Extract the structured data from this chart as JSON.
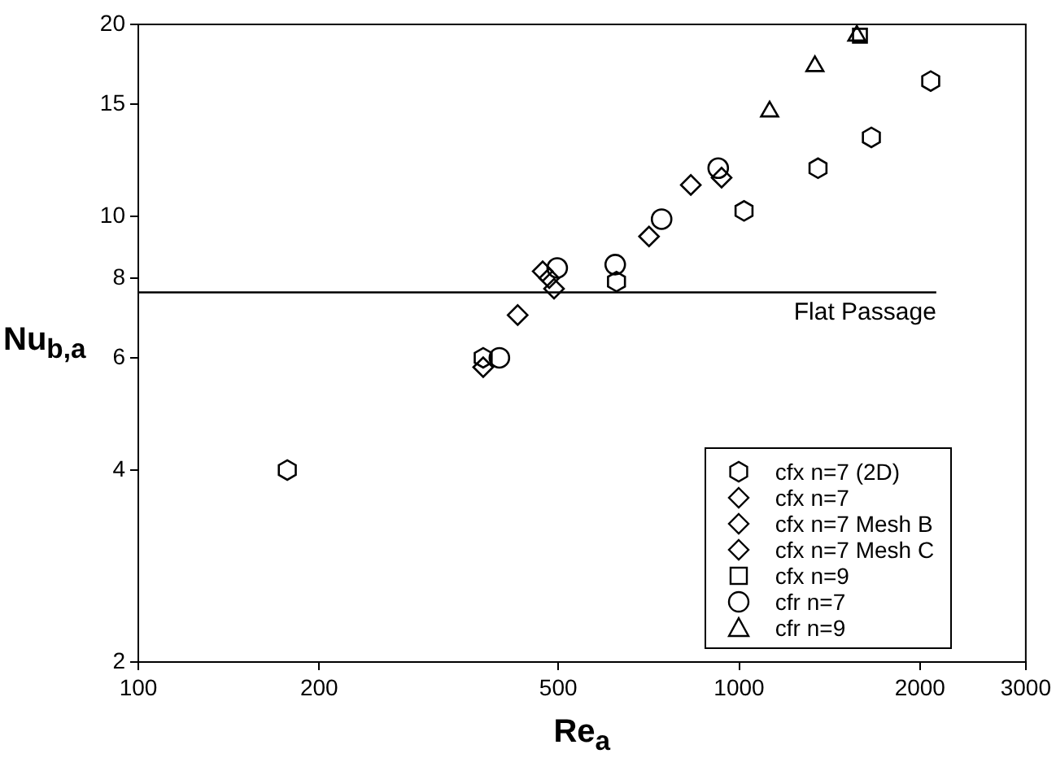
{
  "chart_data": {
    "type": "scatter",
    "xlabel": "Re$_{a}$",
    "ylabel": "Nu$_{b,a}$",
    "log": "xy",
    "xlim": [
      100,
      3000
    ],
    "ylim": [
      2,
      20
    ],
    "xticks": [
      100,
      200,
      500,
      1000,
      2000,
      3000
    ],
    "yticks": [
      2,
      4,
      6,
      8,
      10,
      15,
      20
    ],
    "grid": false,
    "legend": "bottom right",
    "ref_lines": [
      {
        "axis": "y",
        "value": 7.6,
        "label": "Flat Passage",
        "color": "#000000",
        "line_style": "solid"
      }
    ],
    "series": [
      {
        "name": "cfx n=7 (2D)",
        "color": "#000000",
        "x": [
          177,
          375,
          625,
          1019,
          1353,
          1660,
          2084
        ],
        "values": [
          4.0,
          6.0,
          7.9,
          10.2,
          11.9,
          13.3,
          16.3
        ]
      },
      {
        "name": "cfx n=7",
        "marker": "diamond",
        "color": "#000000",
        "x": [
          375,
          428,
          471,
          708,
          831,
          935
        ],
        "values": [
          5.8,
          7.0,
          8.2,
          9.3,
          11.2,
          11.5
        ]
      },
      {
        "name": "cfx n=7 Mesh B",
        "marker": "diamond",
        "color": "#000000",
        "x": [
          483
        ],
        "values": [
          8.0
        ]
      },
      {
        "name": "cfx n=7 Mesh C",
        "marker": "diamond",
        "color": "#000000",
        "x": [
          492
        ],
        "values": [
          7.7
        ]
      },
      {
        "name": "cfx n=9",
        "marker": "square",
        "color": "#000000",
        "x": [
          1589
        ],
        "values": [
          19.2
        ]
      },
      {
        "name": "cfr n=7",
        "marker": "circle",
        "color": "#000000",
        "x": [
          399,
          498,
          622,
          743,
          923
        ],
        "values": [
          6.0,
          8.3,
          8.4,
          9.9,
          11.9
        ]
      },
      {
        "name": "cfr n=9",
        "marker": "triangle",
        "color": "#000000",
        "x": [
          1124,
          1337,
          1570
        ],
        "values": [
          14.6,
          17.2,
          19.2
        ]
      }
    ]
  }
}
